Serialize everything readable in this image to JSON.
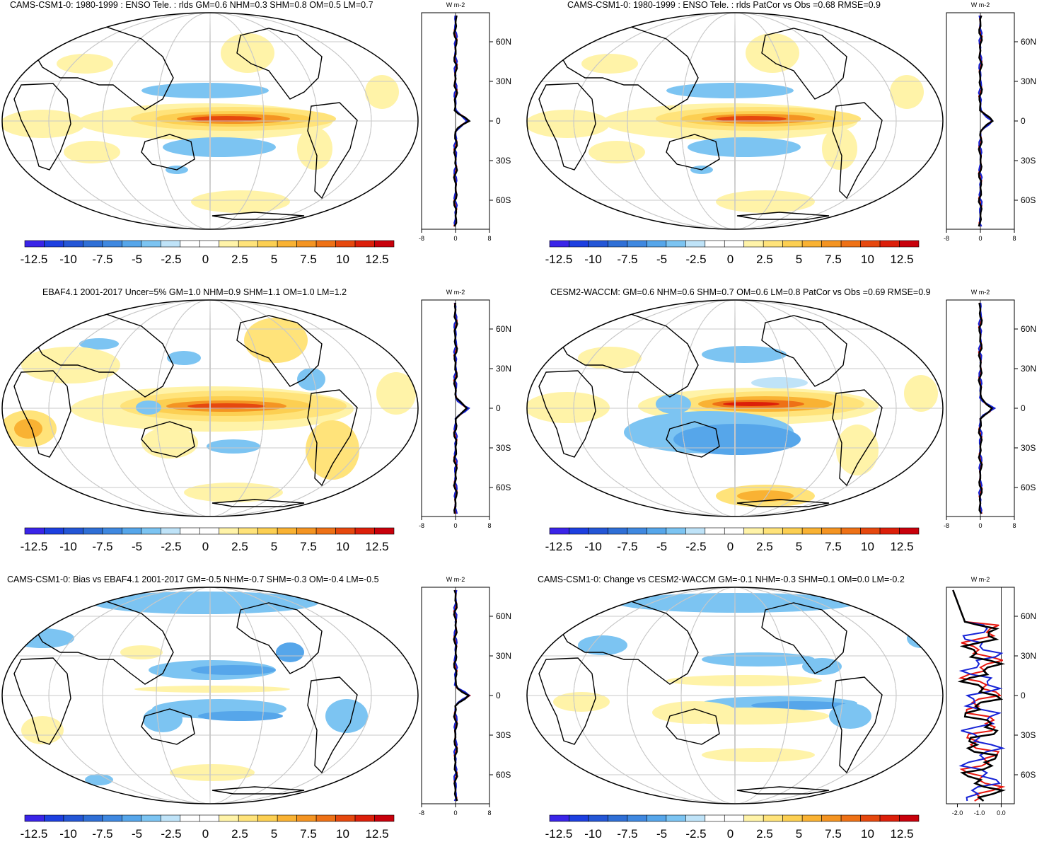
{
  "colorbar": {
    "labels": [
      "-12.5",
      "-10",
      "-7.5",
      "-5",
      "-2.5",
      "0",
      "2.5",
      "5",
      "7.5",
      "10",
      "12.5"
    ],
    "colors": [
      "#3a24e8",
      "#1d3fe0",
      "#2456d6",
      "#2f6fd6",
      "#3f88e0",
      "#56a6ea",
      "#7cc4f2",
      "#bfe3f8",
      "#ffffff",
      "#ffffff",
      "#fff3a8",
      "#ffe37a",
      "#fccf52",
      "#f9b233",
      "#f49422",
      "#ee7116",
      "#e6480e",
      "#dc1f0a",
      "#c8000b"
    ]
  },
  "unit_label": "W m-2",
  "lat_ticks": [
    "60N",
    "30N",
    "0",
    "30S",
    "60S"
  ],
  "zonal_series_colors": {
    "black": "#000000",
    "red": "#e8170e",
    "blue": "#1522d6"
  },
  "panels": [
    {
      "id": "p1",
      "title": "CAMS-CSM1-0: 1980-1999 : ENSO Tele. : rlds GM=0.6 NHM=0.3 SHM=0.8 OM=0.5 LM=0.7",
      "xticks": [
        "-8",
        "0",
        "8"
      ],
      "style": "a"
    },
    {
      "id": "p2",
      "title": "CAMS-CSM1-0: 1980-1999 : ENSO Tele. : rlds PatCor vs Obs =0.68 RMSE=0.9",
      "xticks": [
        "-8",
        "0",
        "8"
      ],
      "style": "a"
    },
    {
      "id": "p3",
      "title": "EBAF4.1 2001-2017 Uncer=5% GM=1.0 NHM=0.9 SHM=1.1 OM=1.0 LM=1.2",
      "xticks": [
        "-8",
        "0",
        "8"
      ],
      "style": "b"
    },
    {
      "id": "p4",
      "title": "CESM2-WACCM: GM=0.6 NHM=0.6 SHM=0.7 OM=0.6 LM=0.8 PatCor vs Obs =0.69 RMSE=0.9",
      "xticks": [
        "-8",
        "0",
        "8"
      ],
      "style": "c"
    },
    {
      "id": "p5",
      "title": "CAMS-CSM1-0: Bias vs EBAF4.1 2001-2017 GM=-0.5 NHM=-0.7 SHM=-0.3 OM=-0.4 LM=-0.5",
      "xticks": [
        "-8",
        "0",
        "8"
      ],
      "style": "d"
    },
    {
      "id": "p6",
      "title": "CAMS-CSM1-0: Change vs CESM2-WACCM GM=-0.1 NHM=-0.3 SHM=0.1 OM=0.0 LM=-0.2",
      "xticks": [
        "-2.0",
        "-1.0",
        "0.0"
      ],
      "style": "e"
    }
  ],
  "chart_data": [
    {
      "type": "heatmap",
      "title": "CAMS-CSM1-0: 1980-1999 : ENSO Tele. : rlds GM=0.6 NHM=0.3 SHM=0.8 OM=0.5 LM=0.7",
      "xlabel": "",
      "ylabel": "",
      "colorbar_range": [
        -12.5,
        12.5
      ],
      "zonal_mean": {
        "xlim": [
          -8,
          8
        ],
        "ylim": [
          -90,
          90
        ],
        "series": [
          {
            "name": "black",
            "x": [
              0,
              0,
              0.3,
              0.5,
              1,
              3,
              1,
              0.5,
              0.3,
              0,
              0
            ],
            "y": [
              -90,
              -60,
              -30,
              -15,
              -5,
              0,
              5,
              15,
              30,
              60,
              90
            ]
          }
        ]
      }
    },
    {
      "type": "heatmap",
      "title": "CAMS-CSM1-0: 1980-1999 : ENSO Tele. : rlds PatCor vs Obs =0.68 RMSE=0.9",
      "colorbar_range": [
        -12.5,
        12.5
      ]
    },
    {
      "type": "heatmap",
      "title": "EBAF4.1 2001-2017 Uncer=5% GM=1.0 NHM=0.9 SHM=1.1 OM=1.0 LM=1.2",
      "colorbar_range": [
        -12.5,
        12.5
      ]
    },
    {
      "type": "heatmap",
      "title": "CESM2-WACCM: GM=0.6 NHM=0.6 SHM=0.7 OM=0.6 LM=0.8 PatCor vs Obs =0.69 RMSE=0.9",
      "colorbar_range": [
        -12.5,
        12.5
      ]
    },
    {
      "type": "heatmap",
      "title": "CAMS-CSM1-0: Bias vs EBAF4.1 2001-2017 GM=-0.5 NHM=-0.7 SHM=-0.3 OM=-0.4 LM=-0.5",
      "colorbar_range": [
        -12.5,
        12.5
      ]
    },
    {
      "type": "heatmap",
      "title": "CAMS-CSM1-0: Change vs CESM2-WACCM GM=-0.1 NHM=-0.3 SHM=0.1 OM=0.0 LM=-0.2",
      "colorbar_range": [
        -12.5,
        12.5
      ],
      "zonal_mean": {
        "xlim": [
          -2.5,
          0.6
        ],
        "ylim": [
          -90,
          90
        ]
      }
    }
  ]
}
